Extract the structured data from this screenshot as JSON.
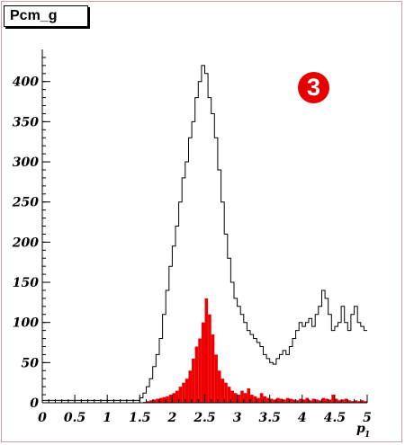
{
  "title": "Pcm_g",
  "badge": "3",
  "colors": {
    "fill": "#ee0000",
    "frame": "#c9a3a3",
    "line": "#000000"
  },
  "chart_data": {
    "type": "histogram",
    "title": "Pcm_g",
    "xlabel": "p",
    "xlabel_subscript": "1",
    "ylabel": "",
    "xlim": [
      0,
      5
    ],
    "ylim": [
      0,
      440
    ],
    "grid": false,
    "x_ticks": [
      "0",
      "0.5",
      "1",
      "1.5",
      "2",
      "2.5",
      "3",
      "3.5",
      "4",
      "4.5",
      "5"
    ],
    "y_ticks": [
      "0",
      "50",
      "100",
      "150",
      "200",
      "250",
      "300",
      "350",
      "400"
    ],
    "bin_width": 0.05,
    "series": [
      {
        "style": "outline",
        "x": [
          1.5,
          1.55,
          1.6,
          1.65,
          1.7,
          1.75,
          1.8,
          1.85,
          1.9,
          1.95,
          2.0,
          2.05,
          2.1,
          2.15,
          2.2,
          2.25,
          2.3,
          2.35,
          2.4,
          2.45,
          2.5,
          2.55,
          2.6,
          2.65,
          2.7,
          2.75,
          2.8,
          2.85,
          2.9,
          2.95,
          3.0,
          3.05,
          3.1,
          3.15,
          3.2,
          3.25,
          3.3,
          3.35,
          3.4,
          3.45,
          3.5,
          3.55,
          3.6,
          3.65,
          3.7,
          3.75,
          3.8,
          3.85,
          3.9,
          3.95,
          4.0,
          4.05,
          4.1,
          4.15,
          4.2,
          4.25,
          4.3,
          4.35,
          4.4,
          4.45,
          4.5,
          4.55,
          4.6,
          4.65,
          4.7,
          4.75,
          4.8,
          4.85,
          4.9,
          4.95
        ],
        "values": [
          6,
          12,
          20,
          30,
          45,
          60,
          80,
          110,
          140,
          170,
          195,
          220,
          250,
          280,
          300,
          330,
          350,
          380,
          400,
          420,
          410,
          380,
          360,
          330,
          290,
          250,
          210,
          180,
          150,
          130,
          120,
          110,
          100,
          90,
          85,
          80,
          75,
          70,
          60,
          55,
          50,
          48,
          55,
          60,
          65,
          60,
          70,
          80,
          90,
          100,
          95,
          100,
          105,
          95,
          110,
          120,
          140,
          130,
          110,
          90,
          95,
          100,
          120,
          100,
          90,
          110,
          120,
          100,
          95,
          90
        ]
      },
      {
        "style": "filled",
        "x": [
          1.5,
          1.55,
          1.6,
          1.65,
          1.7,
          1.75,
          1.8,
          1.85,
          1.9,
          1.95,
          2.0,
          2.05,
          2.1,
          2.15,
          2.2,
          2.25,
          2.3,
          2.35,
          2.4,
          2.45,
          2.5,
          2.55,
          2.6,
          2.65,
          2.7,
          2.75,
          2.8,
          2.85,
          2.9,
          2.95,
          3.0,
          3.05,
          3.1,
          3.15,
          3.2,
          3.25,
          3.3,
          3.35,
          3.4,
          3.45,
          3.5,
          3.55,
          3.6,
          3.65,
          3.7,
          3.75,
          3.8,
          3.85,
          3.9,
          3.95,
          4.0,
          4.05,
          4.1,
          4.15,
          4.2,
          4.25,
          4.3,
          4.35,
          4.4,
          4.45,
          4.5,
          4.55,
          4.6,
          4.65,
          4.7,
          4.75,
          4.8,
          4.85,
          4.9,
          4.95
        ],
        "values": [
          0,
          1,
          2,
          3,
          4,
          5,
          6,
          7,
          8,
          10,
          12,
          15,
          20,
          25,
          30,
          40,
          55,
          70,
          80,
          100,
          130,
          110,
          85,
          60,
          40,
          30,
          25,
          20,
          15,
          12,
          10,
          15,
          12,
          18,
          10,
          8,
          6,
          12,
          8,
          6,
          5,
          4,
          6,
          5,
          4,
          6,
          5,
          4,
          3,
          5,
          4,
          6,
          3,
          5,
          4,
          3,
          6,
          5,
          4,
          10,
          5,
          3,
          4,
          5,
          3,
          2,
          3,
          2,
          3,
          2
        ]
      }
    ]
  }
}
